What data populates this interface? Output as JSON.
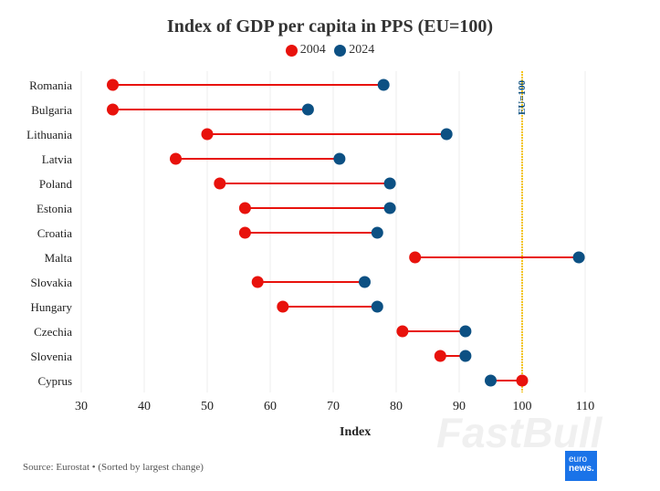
{
  "chart_data": {
    "type": "dumbbell",
    "title": "Index of GDP per capita in PPS (EU=100)",
    "xlabel": "Index",
    "xlim": [
      30,
      110
    ],
    "xticks": [
      30,
      40,
      50,
      60,
      70,
      80,
      90,
      100,
      110
    ],
    "grid": true,
    "legend_position": "top",
    "categories": [
      "Romania",
      "Bulgaria",
      "Lithuania",
      "Latvia",
      "Poland",
      "Estonia",
      "Croatia",
      "Malta",
      "Slovakia",
      "Hungary",
      "Czechia",
      "Slovenia",
      "Cyprus"
    ],
    "series": [
      {
        "name": "2004",
        "color": "#e8120c",
        "values": [
          35,
          35,
          50,
          45,
          52,
          56,
          56,
          83,
          58,
          62,
          81,
          87,
          100
        ]
      },
      {
        "name": "2024",
        "color": "#0c5083",
        "values": [
          78,
          66,
          88,
          71,
          79,
          79,
          77,
          109,
          75,
          77,
          91,
          91,
          95
        ]
      }
    ],
    "reference_line": {
      "value": 100,
      "label": "EU=100",
      "color": "#f5c518"
    }
  },
  "footer": {
    "source": "Source: Eurostat • (Sorted by largest change)",
    "logo": "euronews.",
    "watermark": "FastBull"
  }
}
